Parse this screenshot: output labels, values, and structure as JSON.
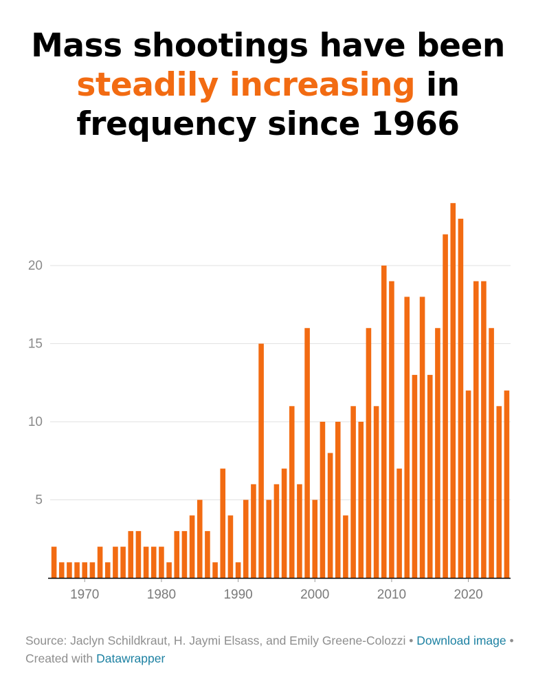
{
  "title": {
    "part1": "Mass shootings have been",
    "highlight": "steadily increasing",
    "part2": " in",
    "line3": "frequency since 1966"
  },
  "colors": {
    "bar": "#f26b12",
    "highlight": "#f26b12",
    "grid": "#e2e2e2",
    "axis": "#000000",
    "link": "#1d81a2"
  },
  "chart_data": {
    "type": "bar",
    "title": "Mass shootings have been steadily increasing in frequency since 1966",
    "xlabel": "",
    "ylabel": "",
    "ylim": [
      0,
      25
    ],
    "yticks": [
      5,
      10,
      15,
      20
    ],
    "xticks": [
      1970,
      1980,
      1990,
      2000,
      2010,
      2020
    ],
    "grid": true,
    "categories": [
      1966,
      1967,
      1968,
      1969,
      1970,
      1971,
      1972,
      1973,
      1974,
      1975,
      1976,
      1977,
      1978,
      1979,
      1980,
      1981,
      1982,
      1983,
      1984,
      1985,
      1986,
      1987,
      1988,
      1989,
      1990,
      1991,
      1992,
      1993,
      1994,
      1995,
      1996,
      1997,
      1998,
      1999,
      2000,
      2001,
      2002,
      2003,
      2004,
      2005,
      2006,
      2007,
      2008,
      2009,
      2010,
      2011,
      2012,
      2013,
      2014,
      2015,
      2016,
      2017,
      2018,
      2019,
      2020,
      2021,
      2022,
      2023,
      2024,
      2025
    ],
    "values": [
      2,
      1,
      1,
      1,
      1,
      1,
      2,
      1,
      2,
      2,
      3,
      3,
      2,
      2,
      2,
      1,
      3,
      3,
      4,
      5,
      3,
      1,
      7,
      4,
      1,
      5,
      6,
      15,
      5,
      6,
      7,
      11,
      6,
      16,
      5,
      10,
      8,
      10,
      4,
      11,
      10,
      16,
      11,
      20,
      19,
      7,
      18,
      13,
      18,
      13,
      16,
      22,
      24,
      23,
      12,
      19,
      19,
      16,
      11,
      12
    ]
  },
  "footer": {
    "source": "Source: Jaclyn Schildkraut, H. Jaymi Elsass, and Emily Greene-Colozzi",
    "sep1": " • ",
    "download": "Download image",
    "sep2": " • Created with ",
    "datawrapper": "Datawrapper"
  }
}
